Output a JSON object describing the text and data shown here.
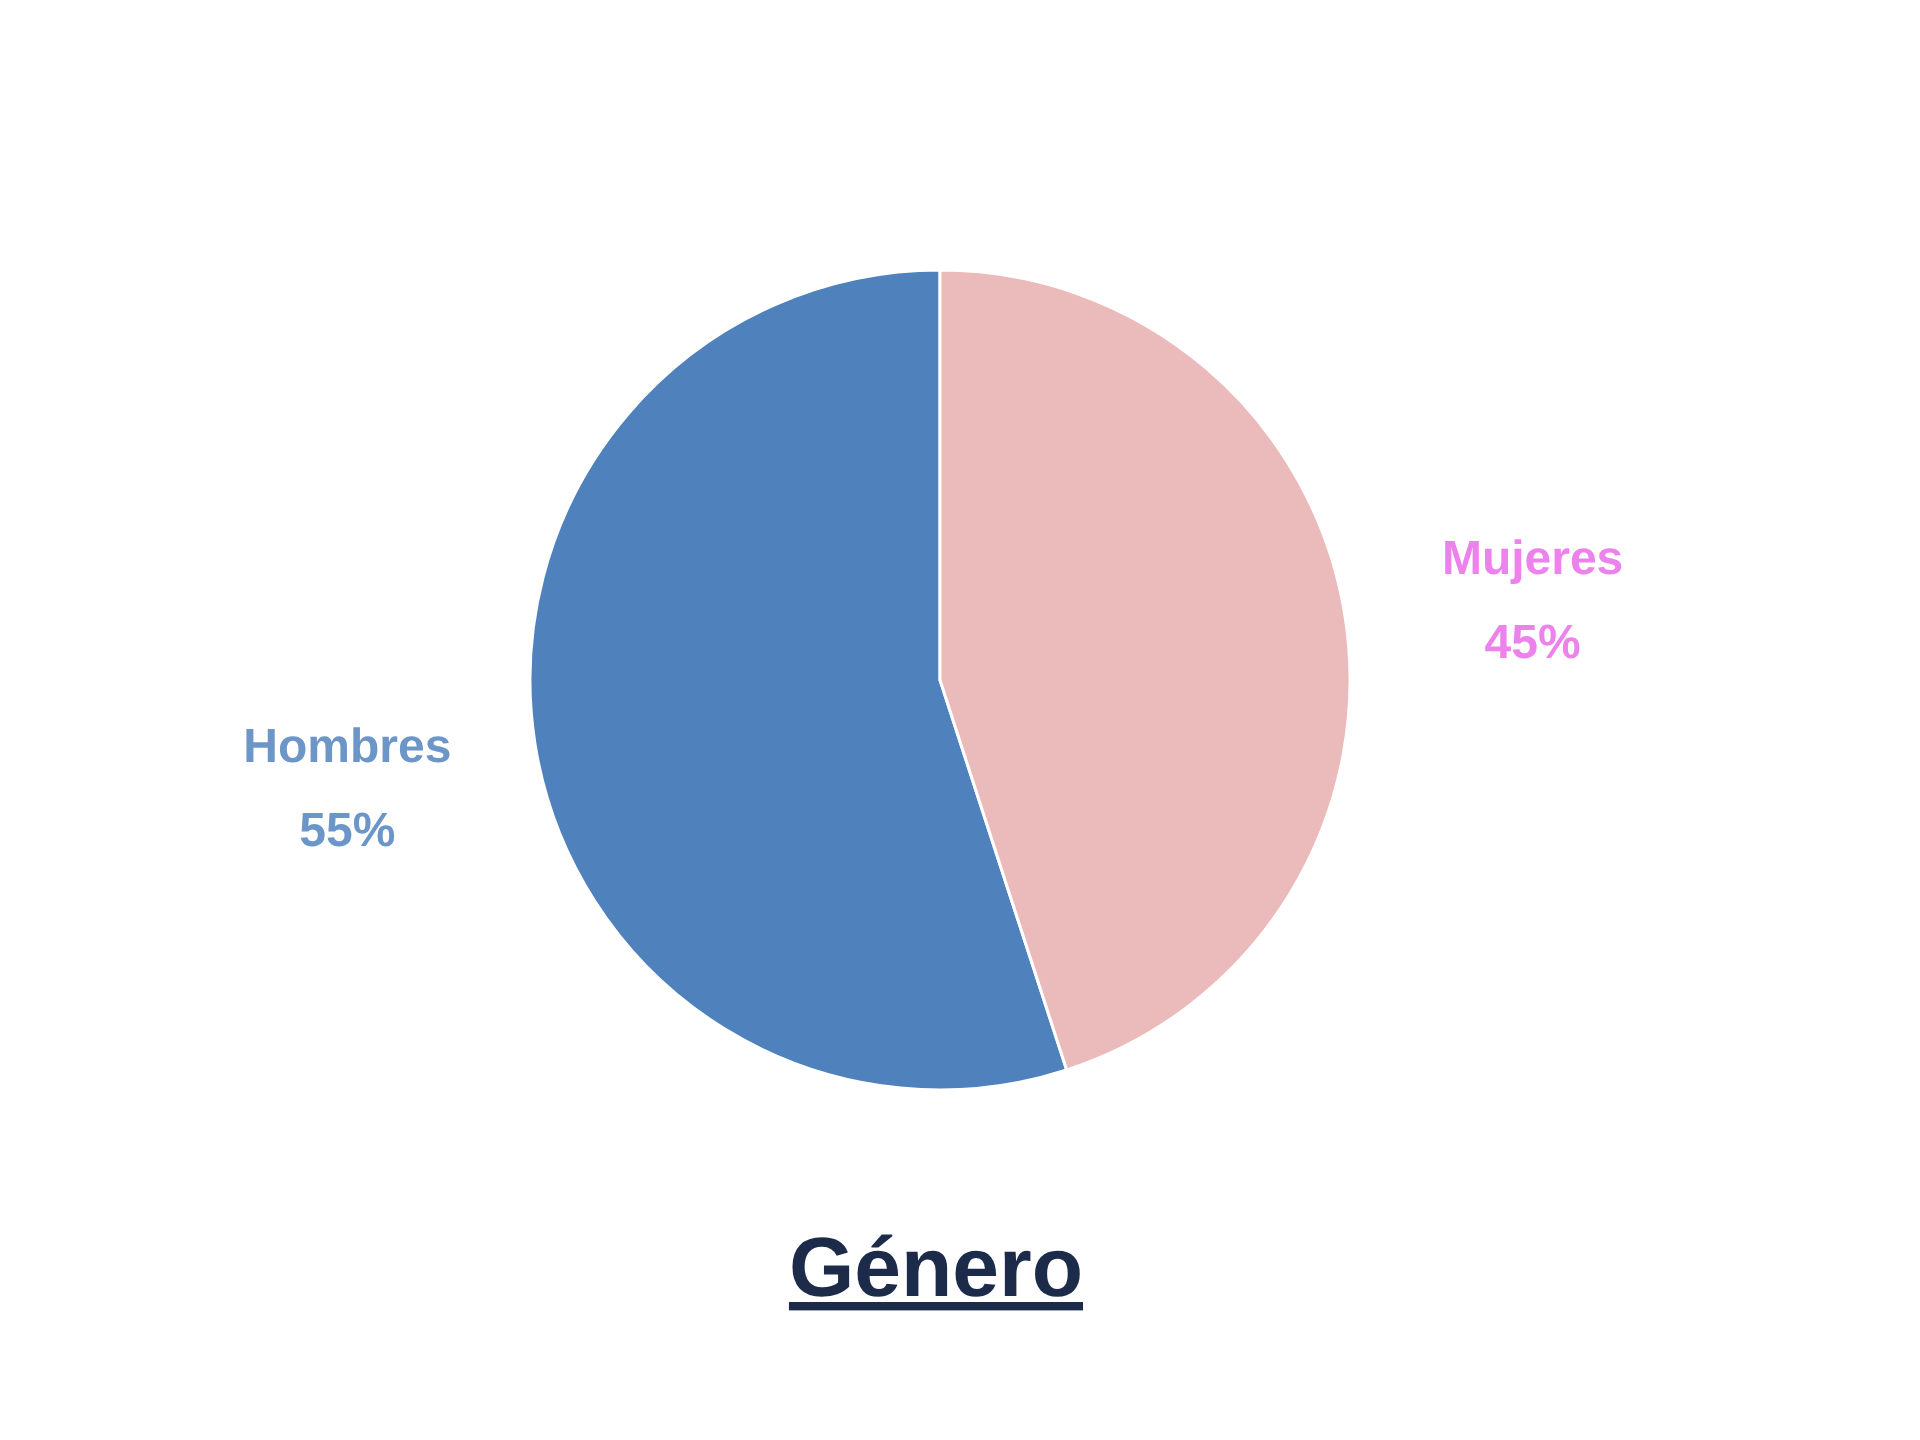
{
  "chart_data": {
    "type": "pie",
    "title": "Género",
    "categories": [
      "Hombres",
      "Mujeres"
    ],
    "values": [
      55,
      45
    ],
    "colors": [
      "#4f81bd",
      "#ebbaba"
    ],
    "value_labels": [
      "55%",
      "45%"
    ]
  }
}
